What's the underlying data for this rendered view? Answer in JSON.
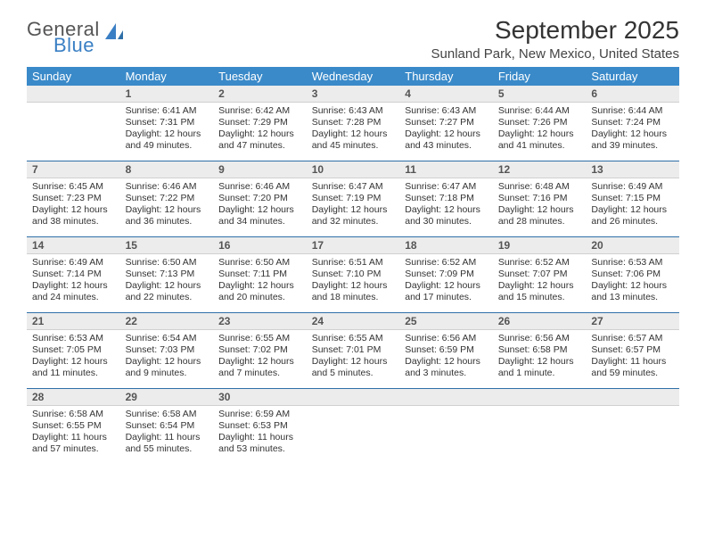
{
  "logo": {
    "part1": "General",
    "part2": "Blue"
  },
  "title": "September 2025",
  "location": "Sunland Park, New Mexico, United States",
  "colors": {
    "header_bg": "#3a8ac9",
    "header_fg": "#ffffff",
    "daynum_bg": "#ececec",
    "week_sep": "#2f6fa8",
    "logo_blue": "#3a7fc4"
  },
  "day_names": [
    "Sunday",
    "Monday",
    "Tuesday",
    "Wednesday",
    "Thursday",
    "Friday",
    "Saturday"
  ],
  "weeks": [
    [
      {
        "num": "",
        "sunrise": "",
        "sunset": "",
        "daylight": ""
      },
      {
        "num": "1",
        "sunrise": "Sunrise: 6:41 AM",
        "sunset": "Sunset: 7:31 PM",
        "daylight": "Daylight: 12 hours and 49 minutes."
      },
      {
        "num": "2",
        "sunrise": "Sunrise: 6:42 AM",
        "sunset": "Sunset: 7:29 PM",
        "daylight": "Daylight: 12 hours and 47 minutes."
      },
      {
        "num": "3",
        "sunrise": "Sunrise: 6:43 AM",
        "sunset": "Sunset: 7:28 PM",
        "daylight": "Daylight: 12 hours and 45 minutes."
      },
      {
        "num": "4",
        "sunrise": "Sunrise: 6:43 AM",
        "sunset": "Sunset: 7:27 PM",
        "daylight": "Daylight: 12 hours and 43 minutes."
      },
      {
        "num": "5",
        "sunrise": "Sunrise: 6:44 AM",
        "sunset": "Sunset: 7:26 PM",
        "daylight": "Daylight: 12 hours and 41 minutes."
      },
      {
        "num": "6",
        "sunrise": "Sunrise: 6:44 AM",
        "sunset": "Sunset: 7:24 PM",
        "daylight": "Daylight: 12 hours and 39 minutes."
      }
    ],
    [
      {
        "num": "7",
        "sunrise": "Sunrise: 6:45 AM",
        "sunset": "Sunset: 7:23 PM",
        "daylight": "Daylight: 12 hours and 38 minutes."
      },
      {
        "num": "8",
        "sunrise": "Sunrise: 6:46 AM",
        "sunset": "Sunset: 7:22 PM",
        "daylight": "Daylight: 12 hours and 36 minutes."
      },
      {
        "num": "9",
        "sunrise": "Sunrise: 6:46 AM",
        "sunset": "Sunset: 7:20 PM",
        "daylight": "Daylight: 12 hours and 34 minutes."
      },
      {
        "num": "10",
        "sunrise": "Sunrise: 6:47 AM",
        "sunset": "Sunset: 7:19 PM",
        "daylight": "Daylight: 12 hours and 32 minutes."
      },
      {
        "num": "11",
        "sunrise": "Sunrise: 6:47 AM",
        "sunset": "Sunset: 7:18 PM",
        "daylight": "Daylight: 12 hours and 30 minutes."
      },
      {
        "num": "12",
        "sunrise": "Sunrise: 6:48 AM",
        "sunset": "Sunset: 7:16 PM",
        "daylight": "Daylight: 12 hours and 28 minutes."
      },
      {
        "num": "13",
        "sunrise": "Sunrise: 6:49 AM",
        "sunset": "Sunset: 7:15 PM",
        "daylight": "Daylight: 12 hours and 26 minutes."
      }
    ],
    [
      {
        "num": "14",
        "sunrise": "Sunrise: 6:49 AM",
        "sunset": "Sunset: 7:14 PM",
        "daylight": "Daylight: 12 hours and 24 minutes."
      },
      {
        "num": "15",
        "sunrise": "Sunrise: 6:50 AM",
        "sunset": "Sunset: 7:13 PM",
        "daylight": "Daylight: 12 hours and 22 minutes."
      },
      {
        "num": "16",
        "sunrise": "Sunrise: 6:50 AM",
        "sunset": "Sunset: 7:11 PM",
        "daylight": "Daylight: 12 hours and 20 minutes."
      },
      {
        "num": "17",
        "sunrise": "Sunrise: 6:51 AM",
        "sunset": "Sunset: 7:10 PM",
        "daylight": "Daylight: 12 hours and 18 minutes."
      },
      {
        "num": "18",
        "sunrise": "Sunrise: 6:52 AM",
        "sunset": "Sunset: 7:09 PM",
        "daylight": "Daylight: 12 hours and 17 minutes."
      },
      {
        "num": "19",
        "sunrise": "Sunrise: 6:52 AM",
        "sunset": "Sunset: 7:07 PM",
        "daylight": "Daylight: 12 hours and 15 minutes."
      },
      {
        "num": "20",
        "sunrise": "Sunrise: 6:53 AM",
        "sunset": "Sunset: 7:06 PM",
        "daylight": "Daylight: 12 hours and 13 minutes."
      }
    ],
    [
      {
        "num": "21",
        "sunrise": "Sunrise: 6:53 AM",
        "sunset": "Sunset: 7:05 PM",
        "daylight": "Daylight: 12 hours and 11 minutes."
      },
      {
        "num": "22",
        "sunrise": "Sunrise: 6:54 AM",
        "sunset": "Sunset: 7:03 PM",
        "daylight": "Daylight: 12 hours and 9 minutes."
      },
      {
        "num": "23",
        "sunrise": "Sunrise: 6:55 AM",
        "sunset": "Sunset: 7:02 PM",
        "daylight": "Daylight: 12 hours and 7 minutes."
      },
      {
        "num": "24",
        "sunrise": "Sunrise: 6:55 AM",
        "sunset": "Sunset: 7:01 PM",
        "daylight": "Daylight: 12 hours and 5 minutes."
      },
      {
        "num": "25",
        "sunrise": "Sunrise: 6:56 AM",
        "sunset": "Sunset: 6:59 PM",
        "daylight": "Daylight: 12 hours and 3 minutes."
      },
      {
        "num": "26",
        "sunrise": "Sunrise: 6:56 AM",
        "sunset": "Sunset: 6:58 PM",
        "daylight": "Daylight: 12 hours and 1 minute."
      },
      {
        "num": "27",
        "sunrise": "Sunrise: 6:57 AM",
        "sunset": "Sunset: 6:57 PM",
        "daylight": "Daylight: 11 hours and 59 minutes."
      }
    ],
    [
      {
        "num": "28",
        "sunrise": "Sunrise: 6:58 AM",
        "sunset": "Sunset: 6:55 PM",
        "daylight": "Daylight: 11 hours and 57 minutes."
      },
      {
        "num": "29",
        "sunrise": "Sunrise: 6:58 AM",
        "sunset": "Sunset: 6:54 PM",
        "daylight": "Daylight: 11 hours and 55 minutes."
      },
      {
        "num": "30",
        "sunrise": "Sunrise: 6:59 AM",
        "sunset": "Sunset: 6:53 PM",
        "daylight": "Daylight: 11 hours and 53 minutes."
      },
      {
        "num": "",
        "sunrise": "",
        "sunset": "",
        "daylight": ""
      },
      {
        "num": "",
        "sunrise": "",
        "sunset": "",
        "daylight": ""
      },
      {
        "num": "",
        "sunrise": "",
        "sunset": "",
        "daylight": ""
      },
      {
        "num": "",
        "sunrise": "",
        "sunset": "",
        "daylight": ""
      }
    ]
  ]
}
